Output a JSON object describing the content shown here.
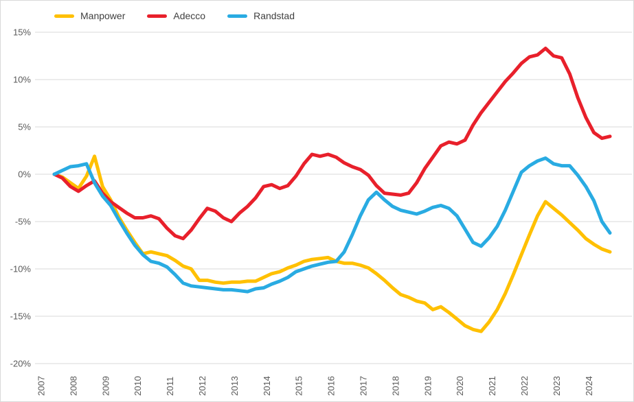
{
  "chart_data": {
    "type": "line",
    "title": "",
    "x_start": 2007.5,
    "x_step": 0.25,
    "x_tick_labels": [
      "2007",
      "2008",
      "2009",
      "2010",
      "2011",
      "2012",
      "2013",
      "2014",
      "2015",
      "2016",
      "2017",
      "2018",
      "2019",
      "2020",
      "2021",
      "2022",
      "2023",
      "2024"
    ],
    "y_ticks": [
      15,
      10,
      5,
      0,
      -5,
      -10,
      -15,
      -20
    ],
    "y_tick_labels": [
      "15%",
      "10%",
      "5%",
      "0%",
      "-5%",
      "-10%",
      "-15%",
      "-20%"
    ],
    "ylim": [
      -20,
      15
    ],
    "grid": true,
    "legend_position": "top-left",
    "colors": {
      "grid": "#d9d9d9",
      "axis_text": "#595959",
      "manpower": "#FFC000",
      "adecco": "#E8202B",
      "randstad": "#29ABE2"
    },
    "series": [
      {
        "name": "Manpower",
        "color": "#FFC000",
        "values": [
          0.0,
          -0.3,
          -0.9,
          -1.5,
          -0.2,
          1.9,
          -1.3,
          -2.7,
          -4.5,
          -5.9,
          -7.2,
          -8.4,
          -8.2,
          -8.4,
          -8.6,
          -9.1,
          -9.7,
          -10.0,
          -11.2,
          -11.2,
          -11.4,
          -11.5,
          -11.4,
          -11.4,
          -11.3,
          -11.3,
          -10.9,
          -10.5,
          -10.3,
          -9.9,
          -9.6,
          -9.2,
          -9.0,
          -8.9,
          -8.8,
          -9.2,
          -9.4,
          -9.4,
          -9.6,
          -9.9,
          -10.5,
          -11.2,
          -12.0,
          -12.7,
          -13.0,
          -13.4,
          -13.6,
          -14.3,
          -14.0,
          -14.6,
          -15.3,
          -16.0,
          -16.4,
          -16.6,
          -15.6,
          -14.3,
          -12.6,
          -10.6,
          -8.5,
          -6.4,
          -4.4,
          -2.9,
          -3.6,
          -4.3,
          -5.1,
          -5.9,
          -6.8,
          -7.4,
          -7.9,
          -8.2
        ]
      },
      {
        "name": "Adecco",
        "color": "#E8202B",
        "values": [
          0.0,
          -0.4,
          -1.3,
          -1.8,
          -1.2,
          -0.7,
          -2.0,
          -2.9,
          -3.5,
          -4.1,
          -4.6,
          -4.6,
          -4.4,
          -4.7,
          -5.7,
          -6.5,
          -6.8,
          -5.9,
          -4.7,
          -3.6,
          -3.9,
          -4.6,
          -5.0,
          -4.1,
          -3.4,
          -2.5,
          -1.3,
          -1.1,
          -1.5,
          -1.2,
          -0.2,
          1.1,
          2.1,
          1.9,
          2.1,
          1.8,
          1.2,
          0.8,
          0.5,
          -0.1,
          -1.2,
          -2.0,
          -2.1,
          -2.2,
          -2.0,
          -0.9,
          0.6,
          1.8,
          3.0,
          3.4,
          3.2,
          3.6,
          5.2,
          6.5,
          7.6,
          8.7,
          9.8,
          10.7,
          11.7,
          12.4,
          12.6,
          13.3,
          12.5,
          12.3,
          10.6,
          8.1,
          6.0,
          4.4,
          3.8,
          4.0
        ]
      },
      {
        "name": "Randstad",
        "color": "#29ABE2",
        "values": [
          0.0,
          0.4,
          0.8,
          0.9,
          1.1,
          -0.9,
          -2.3,
          -3.3,
          -4.8,
          -6.2,
          -7.5,
          -8.5,
          -9.2,
          -9.4,
          -9.8,
          -10.6,
          -11.5,
          -11.8,
          -11.9,
          -12.0,
          -12.1,
          -12.2,
          -12.2,
          -12.3,
          -12.4,
          -12.1,
          -12.0,
          -11.6,
          -11.3,
          -10.9,
          -10.3,
          -10.0,
          -9.7,
          -9.5,
          -9.3,
          -9.2,
          -8.2,
          -6.4,
          -4.4,
          -2.7,
          -1.9,
          -2.7,
          -3.4,
          -3.8,
          -4.0,
          -4.2,
          -3.9,
          -3.5,
          -3.3,
          -3.6,
          -4.4,
          -5.8,
          -7.2,
          -7.6,
          -6.7,
          -5.5,
          -3.8,
          -1.8,
          0.2,
          0.9,
          1.4,
          1.7,
          1.1,
          0.9,
          0.9,
          -0.1,
          -1.3,
          -2.8,
          -5.0,
          -6.2
        ]
      }
    ]
  },
  "legend": {
    "items": [
      {
        "label": "Manpower"
      },
      {
        "label": "Adecco"
      },
      {
        "label": "Randstad"
      }
    ]
  }
}
